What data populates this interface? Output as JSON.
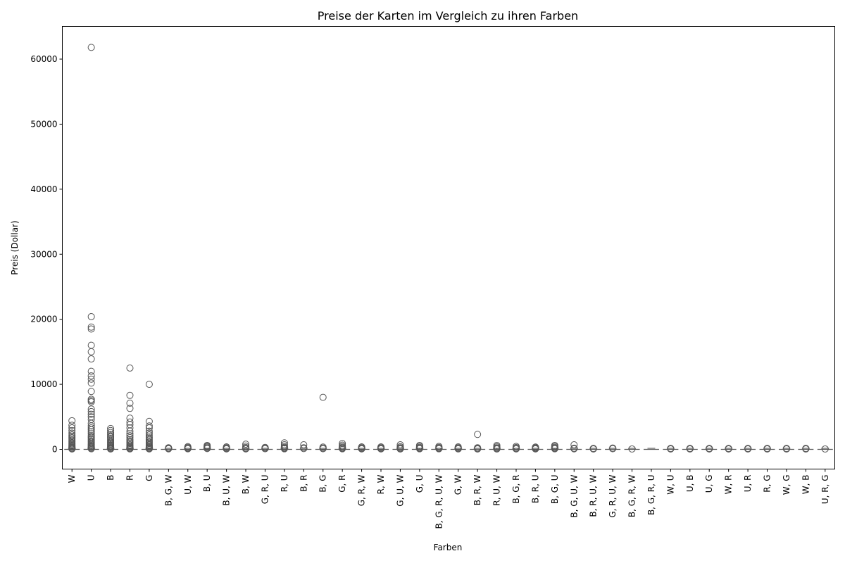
{
  "chart_data": {
    "type": "box",
    "title": "Preise der Karten im Vergleich zu ihren Farben",
    "xlabel": "Farben",
    "ylabel": "Preis (Dollar)",
    "ylim": [
      -3000,
      65000
    ],
    "yticks": [
      0,
      10000,
      20000,
      30000,
      40000,
      50000,
      60000
    ],
    "grid": false,
    "colors": {
      "box_stroke": "#555555",
      "axis": "#000000",
      "background": "#ffffff"
    },
    "categories": [
      "W",
      "U",
      "B",
      "R",
      "G",
      "B, G, W",
      "U, W",
      "B, U",
      "B, U, W",
      "B, W",
      "G, R, U",
      "R, U",
      "B, R",
      "B, G",
      "G, R",
      "G, R, W",
      "R, W",
      "G, U, W",
      "G, U",
      "B, G, R, U, W",
      "G, W",
      "B, R, W",
      "R, U, W",
      "B, G, R",
      "B, R, U",
      "B, G, U",
      "B, G, U, W",
      "B, R, U, W",
      "G, R, U, W",
      "B, G, R, W",
      "B, G, R, U",
      "W, U",
      "U, B",
      "U, G",
      "W, R",
      "U, R",
      "R, G",
      "W, G",
      "W, B",
      "U, R, G"
    ],
    "median": 0,
    "outliers": [
      [
        4400,
        3700,
        3300,
        2900,
        2500,
        2200,
        2000,
        1800,
        1600,
        1400,
        1200,
        1000,
        850,
        700,
        550,
        400,
        280,
        150,
        60
      ],
      [
        61800,
        20400,
        18800,
        18500,
        16000,
        15000,
        13900,
        12000,
        11300,
        10800,
        10200,
        8900,
        7700,
        7500,
        7300,
        6200,
        5800,
        5400,
        5000,
        4600,
        4000,
        3600,
        3300,
        3000,
        2700,
        2400,
        2100,
        1900,
        1700,
        1500,
        1300,
        1100,
        900,
        750,
        600,
        450,
        320,
        200,
        90
      ],
      [
        3200,
        2900,
        2600,
        2300,
        2100,
        1900,
        1700,
        1500,
        1300,
        1100,
        950,
        800,
        650,
        500,
        380,
        260,
        150,
        60
      ],
      [
        12500,
        8300,
        7100,
        6300,
        4800,
        4200,
        3800,
        3300,
        2800,
        2400,
        2100,
        1800,
        1500,
        1300,
        1100,
        900,
        700,
        550,
        400,
        280,
        160,
        70
      ],
      [
        10000,
        4300,
        3600,
        3300,
        2800,
        2500,
        2200,
        1900,
        1700,
        1500,
        1300,
        1100,
        900,
        700,
        550,
        400,
        280,
        160,
        70
      ],
      [
        250,
        150,
        80
      ],
      [
        420,
        300,
        180,
        90
      ],
      [
        600,
        480,
        350,
        220,
        120
      ],
      [
        380,
        260,
        150,
        70
      ],
      [
        800,
        500,
        300,
        150,
        70
      ],
      [
        300,
        200,
        100
      ],
      [
        1000,
        700,
        450,
        300,
        180,
        90
      ],
      [
        700,
        250,
        120
      ],
      [
        8000,
        350,
        200,
        100
      ],
      [
        900,
        650,
        450,
        300,
        180,
        90
      ],
      [
        380,
        260,
        150,
        70
      ],
      [
        380,
        260,
        150,
        70
      ],
      [
        700,
        400,
        250,
        130,
        60
      ],
      [
        600,
        450,
        300,
        180,
        90
      ],
      [
        450,
        300,
        180,
        90
      ],
      [
        380,
        260,
        150,
        70
      ],
      [
        2300,
        250,
        130,
        60
      ],
      [
        600,
        400,
        250,
        130,
        60
      ],
      [
        450,
        280,
        150,
        70
      ],
      [
        350,
        250,
        150,
        70
      ],
      [
        600,
        450,
        300,
        180,
        90
      ],
      [
        700,
        180,
        80
      ],
      [
        150,
        60
      ],
      [
        200,
        100
      ],
      [
        60
      ],
      [],
      [
        150,
        60
      ],
      [
        150,
        60
      ],
      [
        150,
        60
      ],
      [
        150,
        60
      ],
      [
        150,
        60
      ],
      [
        150,
        60
      ],
      [
        150,
        60
      ],
      [
        150,
        60
      ],
      [
        60
      ]
    ]
  }
}
